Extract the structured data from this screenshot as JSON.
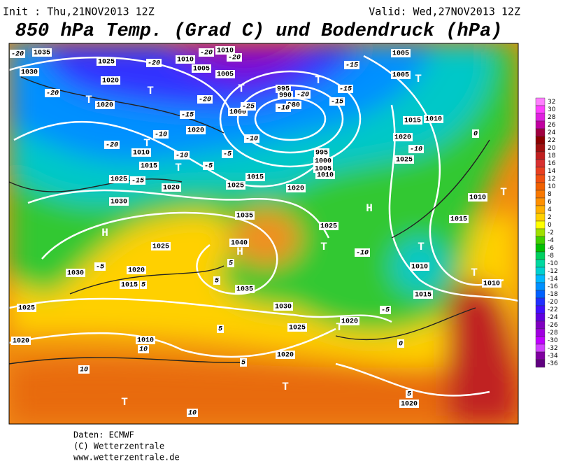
{
  "header": {
    "init": "Init : Thu,21NOV2013 12Z",
    "valid": "Valid: Wed,27NOV2013 12Z",
    "title": "850 hPa Temp. (Grad C) und Bodendruck (hPa)"
  },
  "colorbar": {
    "levels": [
      32,
      30,
      28,
      26,
      24,
      22,
      20,
      18,
      16,
      14,
      12,
      10,
      8,
      6,
      4,
      2,
      0,
      -2,
      -4,
      -6,
      -8,
      -10,
      -12,
      -14,
      -16,
      -18,
      -20,
      -22,
      -24,
      -26,
      -28,
      -30,
      -32,
      -34,
      -36
    ],
    "colors": [
      "#ff80ff",
      "#ff40ff",
      "#e020e0",
      "#c000a0",
      "#a00040",
      "#8c0000",
      "#a01010",
      "#c02020",
      "#d83030",
      "#e84020",
      "#f05010",
      "#f06000",
      "#f87800",
      "#ff9000",
      "#ffb000",
      "#ffd000",
      "#ffff00",
      "#a0e000",
      "#40d000",
      "#00c000",
      "#00d060",
      "#00d8a0",
      "#00d0d0",
      "#00b8ff",
      "#0090ff",
      "#0060ff",
      "#2030ff",
      "#4010ff",
      "#6000e0",
      "#8000c0",
      "#a000e0",
      "#c000ff",
      "#d040ff",
      "#8000a0",
      "#600080"
    ]
  },
  "map_labels": [
    "T",
    "T",
    "T",
    "T",
    "T",
    "T",
    "T",
    "H",
    "H",
    "H",
    "T",
    "T",
    "T",
    "T",
    "T",
    "T",
    "T",
    "1035",
    "1030",
    "1025",
    "1020",
    "1020",
    "1010",
    "1005",
    "1010",
    "1005",
    "995",
    "990",
    "980",
    "1000",
    "1020",
    "1010",
    "1015",
    "1025",
    "1020",
    "1030",
    "1035",
    "1040",
    "1025",
    "1030",
    "1020",
    "1015",
    "1025",
    "1035",
    "1030",
    "1025",
    "1020",
    "1010",
    "1020",
    "1020",
    "1005",
    "1005",
    "1015",
    "1020",
    "1025",
    "1010",
    "1010",
    "1015",
    "1010",
    "1010",
    "1015",
    "1020",
    "995",
    "1000",
    "1005",
    "1010",
    "1015",
    "1025",
    "1020",
    "1025",
    "-20",
    "-20",
    "-20",
    "-20",
    "-20",
    "-20",
    "-25",
    "-20",
    "-15",
    "-15",
    "-15",
    "-20",
    "-10",
    "-15",
    "-10",
    "-5",
    "-5",
    "-10",
    "-10",
    "-15",
    "-10",
    "-5",
    "5",
    "5",
    "5",
    "-5",
    "0",
    "5",
    "5",
    "10",
    "10",
    "10",
    "5",
    "0",
    "-10"
  ],
  "footer": [
    "Daten: ECMWF",
    "(C) Wetterzentrale",
    "www.wetterzentrale.de"
  ]
}
